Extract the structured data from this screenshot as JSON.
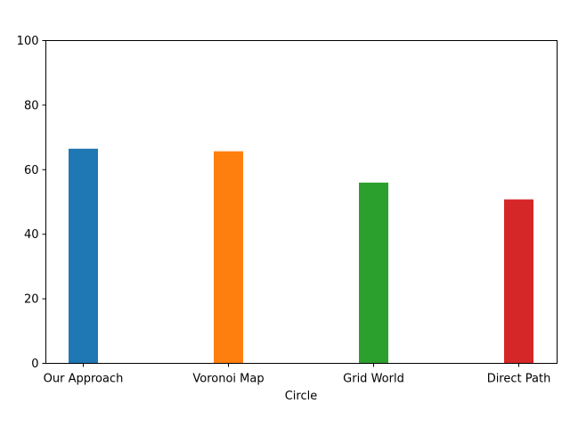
{
  "chart_data": {
    "type": "bar",
    "title": "",
    "xlabel": "Circle",
    "ylabel": "",
    "categories": [
      "Our Approach",
      "Voronoi Map",
      "Grid World",
      "Direct Path"
    ],
    "values": [
      66.5,
      65.7,
      56.0,
      50.8
    ],
    "colors": [
      "#1f77b4",
      "#ff7f0e",
      "#2ca02c",
      "#d62728"
    ],
    "ylim": [
      0,
      100
    ],
    "yticks": [
      0,
      20,
      40,
      60,
      80,
      100
    ],
    "grid": false,
    "legend": "none"
  }
}
